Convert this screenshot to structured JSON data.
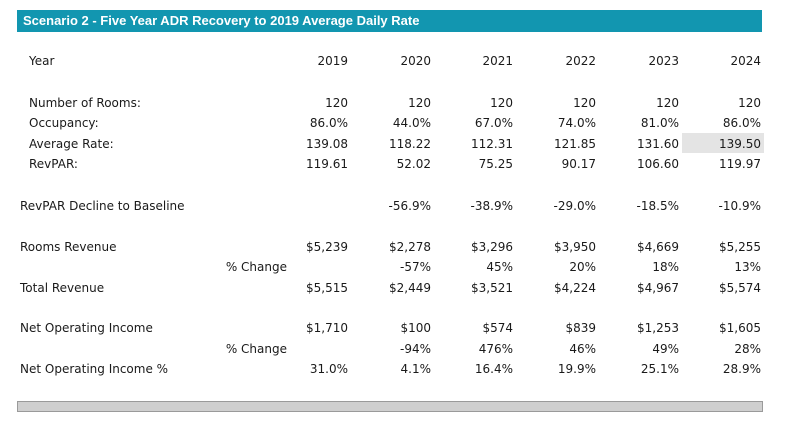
{
  "title": "Scenario 2 - Five Year ADR Recovery to 2019 Average Daily Rate",
  "header_label": "Year",
  "years": [
    "2019",
    "2020",
    "2021",
    "2022",
    "2023",
    "2024"
  ],
  "rows": {
    "rooms": {
      "label": "Number of Rooms:",
      "values": [
        "120",
        "120",
        "120",
        "120",
        "120",
        "120"
      ]
    },
    "occupancy": {
      "label": "Occupancy:",
      "values": [
        "86.0%",
        "44.0%",
        "67.0%",
        "74.0%",
        "81.0%",
        "86.0%"
      ]
    },
    "adr": {
      "label": "Average Rate:",
      "values": [
        "139.08",
        "118.22",
        "112.31",
        "121.85",
        "131.60",
        "139.50"
      ]
    },
    "revpar": {
      "label": "RevPAR:",
      "values": [
        "119.61",
        "52.02",
        "75.25",
        "90.17",
        "106.60",
        "119.97"
      ]
    },
    "revpar_decline": {
      "label": "RevPAR Decline to Baseline",
      "values": [
        "",
        "-56.9%",
        "-38.9%",
        "-29.0%",
        "-18.5%",
        "-10.9%"
      ]
    },
    "rooms_revenue": {
      "label": "Rooms Revenue",
      "values": [
        "$5,239",
        "$2,278",
        "$3,296",
        "$3,950",
        "$4,669",
        "$5,255"
      ]
    },
    "rooms_revenue_change": {
      "label": "% Change",
      "values": [
        "",
        "-57%",
        "45%",
        "20%",
        "18%",
        "13%"
      ]
    },
    "total_revenue": {
      "label": "Total Revenue",
      "values": [
        "$5,515",
        "$2,449",
        "$3,521",
        "$4,224",
        "$4,967",
        "$5,574"
      ]
    },
    "noi": {
      "label": "Net Operating Income",
      "values": [
        "$1,710",
        "$100",
        "$574",
        "$839",
        "$1,253",
        "$1,605"
      ]
    },
    "noi_change": {
      "label": "% Change",
      "values": [
        "",
        "-94%",
        "476%",
        "46%",
        "49%",
        "28%"
      ]
    },
    "noi_pct": {
      "label": "Net Operating Income %",
      "values": [
        "31.0%",
        "4.1%",
        "16.4%",
        "19.9%",
        "25.1%",
        "28.9%"
      ]
    }
  },
  "colors": {
    "title_bg": "#1296b0",
    "title_text": "#ffffff",
    "highlight_cell": "#e4e4e4"
  }
}
